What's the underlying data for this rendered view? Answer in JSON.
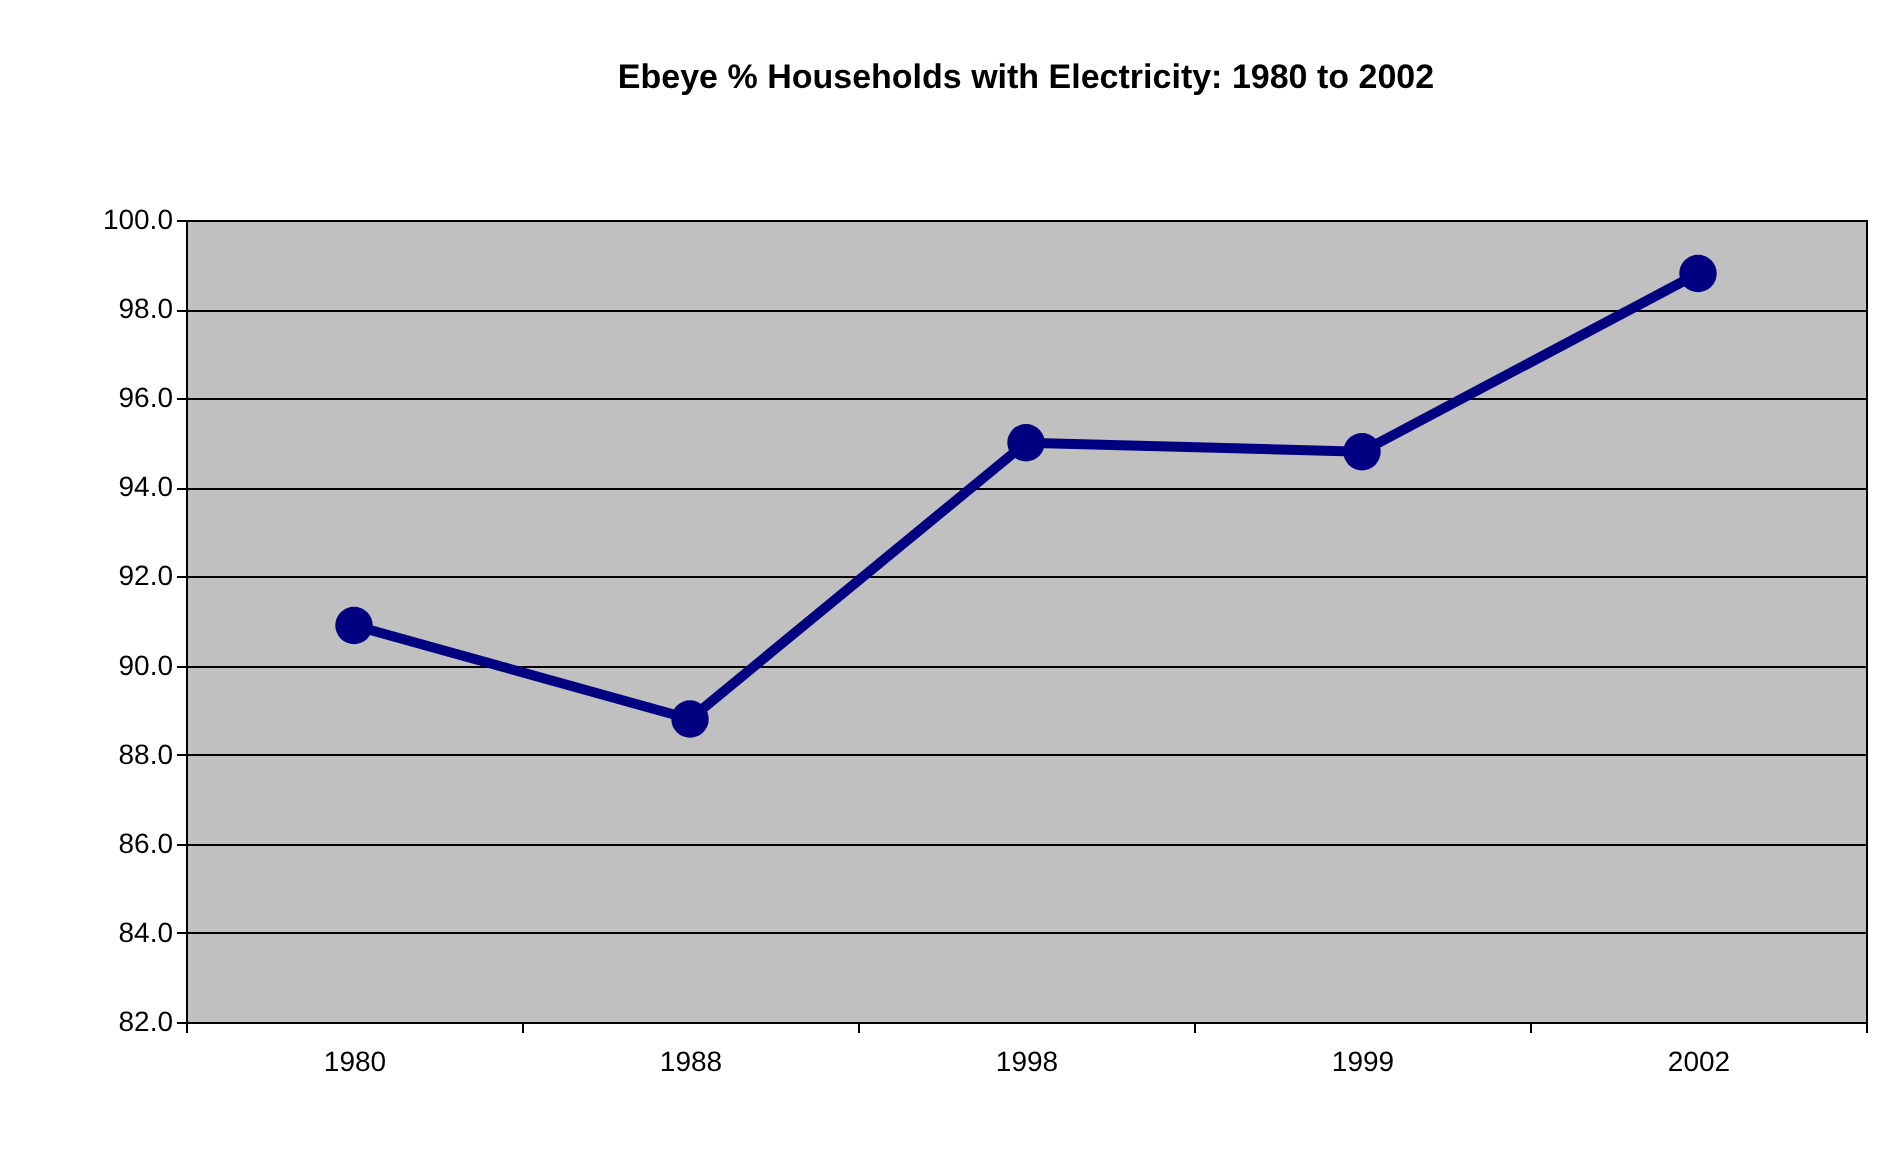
{
  "chart_data": {
    "type": "line",
    "title": "Ebeye % Households with Electricity: 1980 to 2002",
    "categories": [
      "1980",
      "1988",
      "1998",
      "1999",
      "2002"
    ],
    "series": [
      {
        "color": "#000080",
        "values": [
          90.9,
          88.8,
          95.0,
          94.8,
          98.8
        ]
      }
    ],
    "ylim": [
      82,
      100
    ],
    "yticks": [
      {
        "value": 82,
        "label": "82.0"
      },
      {
        "value": 84,
        "label": "84.0"
      },
      {
        "value": 86,
        "label": "86.0"
      },
      {
        "value": 88,
        "label": "88.0"
      },
      {
        "value": 90,
        "label": "90.0"
      },
      {
        "value": 92,
        "label": "92.0"
      },
      {
        "value": 94,
        "label": "94.0"
      },
      {
        "value": 96,
        "label": "96.0"
      },
      {
        "value": 98,
        "label": "98.0"
      },
      {
        "value": 100,
        "label": "100.0"
      }
    ],
    "grid": "y",
    "marker": "circle",
    "line_style": "solid"
  }
}
